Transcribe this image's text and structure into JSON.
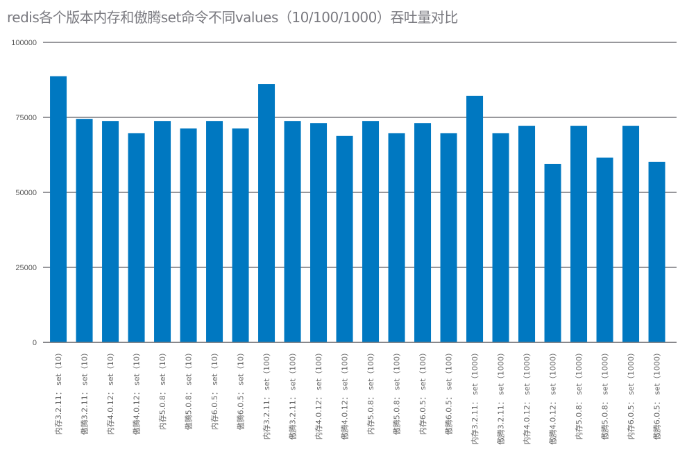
{
  "chart_data": {
    "type": "bar",
    "title": "redis各个版本内存和傲腾set命令不同values（10/100/1000）吞吐量对比",
    "xlabel": "",
    "ylabel": "",
    "ylim": [
      0,
      100000
    ],
    "yticks": [
      "0",
      "25000",
      "50000",
      "75000",
      "100000"
    ],
    "grid": true,
    "bar_color": "#0078c1",
    "categories": [
      "内存3.2.11： set（10）",
      "傲腾3.2.11： set（10）",
      "内存4.0.12： set（10）",
      "傲腾4.0.12： set（10）",
      "内存5.0.8： set（10）",
      "傲腾5.0.8： set（10）",
      "内存6.0.5： set（10）",
      "傲腾6.0.5： set（10）",
      "内存3.2.11： set（100）",
      "傲腾3.2.11： set（100）",
      "内存4.0.12： set（100）",
      "傲腾4.0.12： set（100）",
      "内存5.0.8： set（100）",
      "傲腾5.0.8： set（100）",
      "内存6.0.5： set（100）",
      "傲腾6.0.5： set（100）",
      "内存3.2.11： set（1000）",
      "傲腾3.2.11： set（1000）",
      "内存4.0.12： set（1000）",
      "傲腾4.0.12： set（1000）",
      "内存5.0.8： set（1000）",
      "傲腾5.0.8： set（1000）",
      "内存6.0.5： set（1000）",
      "傲腾6.0.5： set（1000）"
    ],
    "values": [
      88700,
      74500,
      73800,
      69700,
      73800,
      71300,
      73800,
      71300,
      86100,
      73800,
      73100,
      68800,
      73800,
      69700,
      73100,
      69700,
      82200,
      69700,
      72200,
      59500,
      72200,
      61600,
      72200,
      60200
    ]
  }
}
